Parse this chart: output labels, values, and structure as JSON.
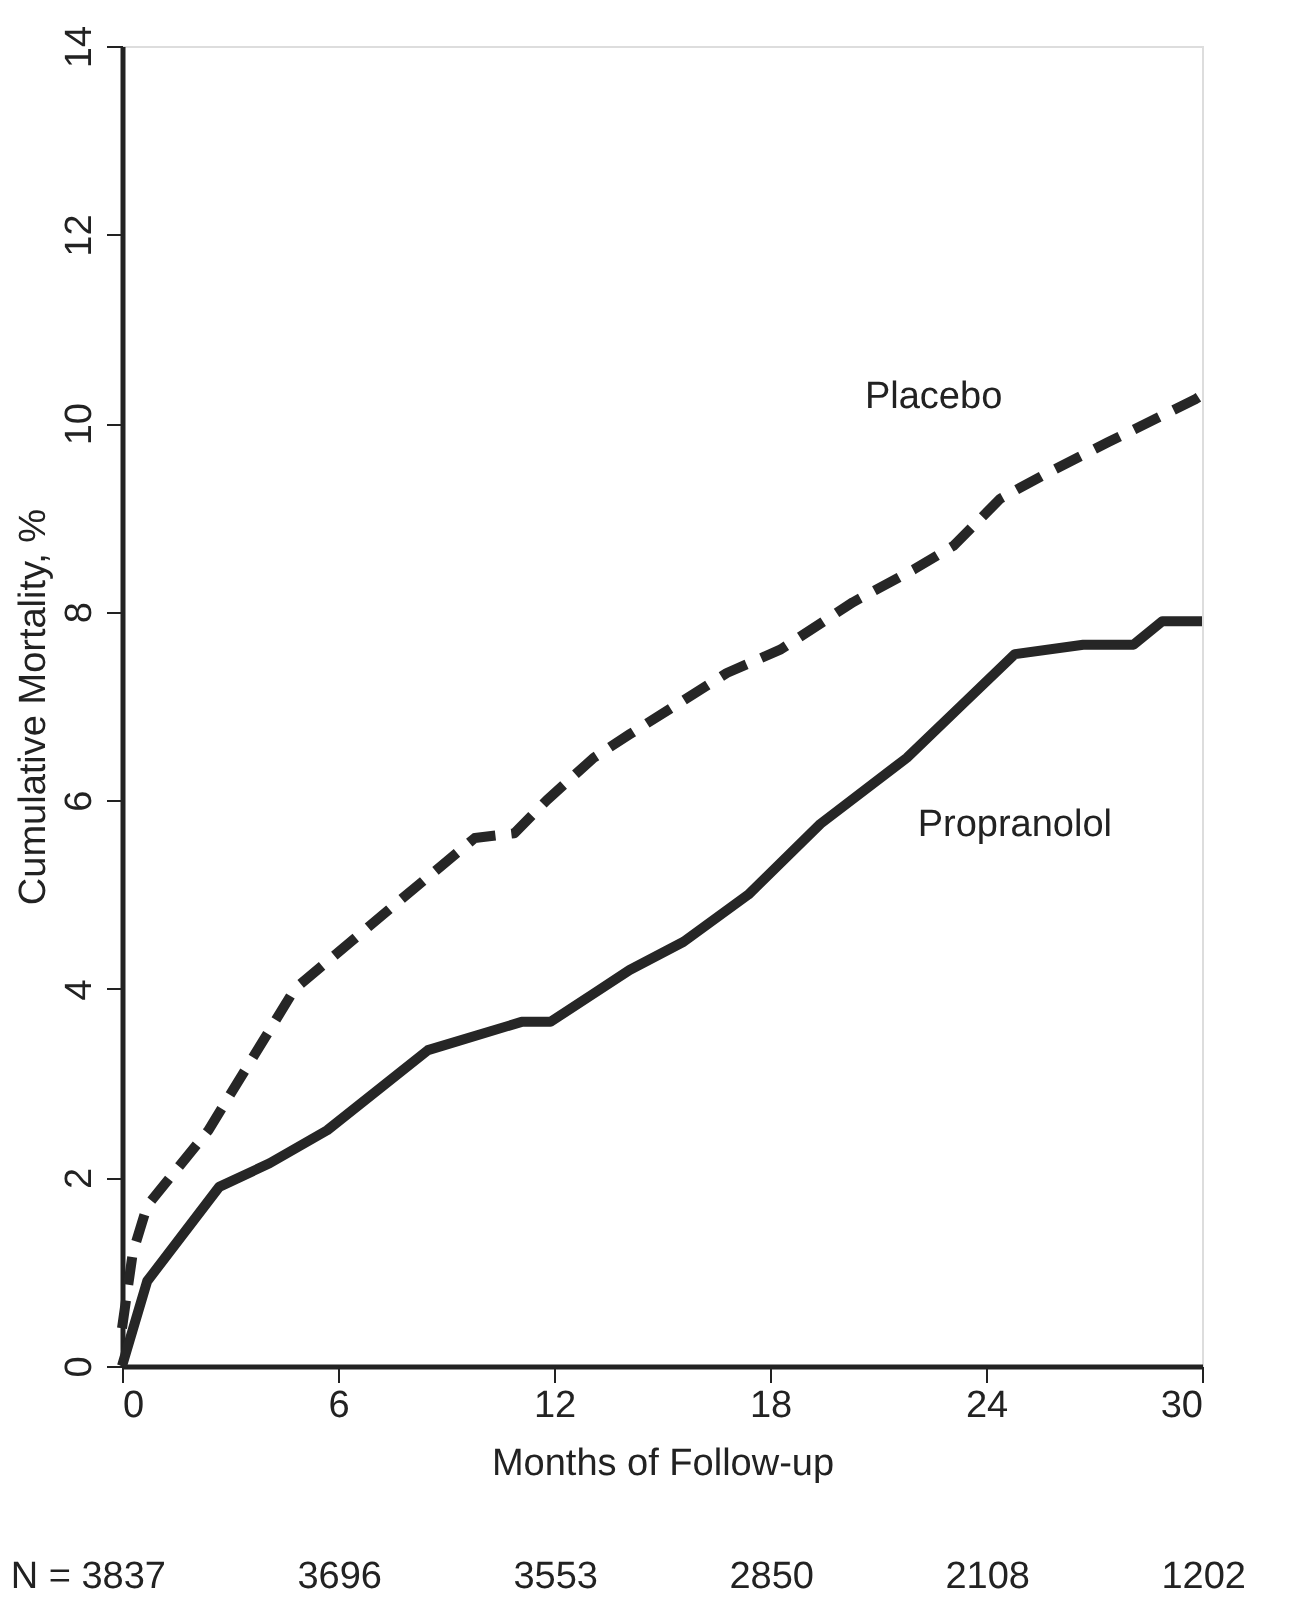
{
  "chart_data": {
    "type": "line",
    "xlabel": "Months of Follow-up",
    "ylabel": "Cumulative Mortality, %",
    "xlim": [
      0,
      30
    ],
    "xticks": [
      0,
      6,
      12,
      18,
      24,
      30
    ],
    "ylim": [
      0,
      14
    ],
    "yticks": [
      0,
      2,
      4,
      6,
      8,
      10,
      12,
      14
    ],
    "grid": false,
    "marker": "none",
    "series": [
      {
        "name": "Placebo",
        "color": "#262626",
        "line_style": "dashed",
        "x": [
          0,
          0.3,
          0.7,
          2.4,
          4.8,
          7.6,
          9.8,
          10.9,
          11.8,
          13.1,
          14.1,
          16.8,
          18.3,
          20.3,
          22,
          23.1,
          24.4,
          25.6,
          27.4,
          29.8,
          30
        ],
        "values": [
          0.4,
          1.2,
          1.7,
          2.5,
          4.0,
          4.9,
          5.6,
          5.65,
          6.0,
          6.45,
          6.7,
          7.35,
          7.6,
          8.1,
          8.45,
          8.7,
          9.2,
          9.45,
          9.8,
          10.25,
          10.3
        ]
      },
      {
        "name": "Propranolol",
        "color": "#262626",
        "line_style": "solid",
        "x": [
          0,
          0.7,
          2.7,
          4.1,
          5.7,
          8.5,
          11.1,
          11.9,
          13.1,
          14.1,
          15.6,
          17.4,
          19.4,
          21.8,
          23.3,
          24.8,
          26.7,
          28.1,
          28.9,
          30
        ],
        "values": [
          0,
          0.9,
          1.9,
          2.15,
          2.5,
          3.35,
          3.65,
          3.65,
          3.95,
          4.2,
          4.5,
          5.0,
          5.75,
          6.45,
          7.0,
          7.55,
          7.65,
          7.65,
          7.9,
          7.9
        ]
      }
    ],
    "annotations": [
      "N = 3837",
      "3696",
      "3553",
      "2850",
      "2108",
      "1202"
    ]
  }
}
